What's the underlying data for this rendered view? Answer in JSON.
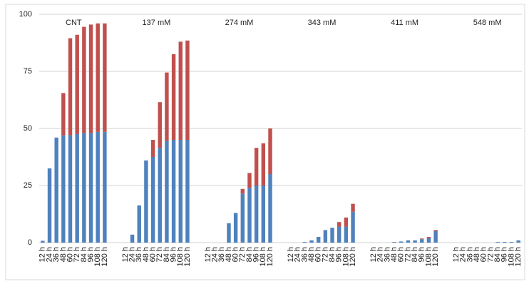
{
  "chart_data": {
    "type": "bar",
    "stacked": true,
    "colors": [
      "#4f81bd",
      "#c0504d"
    ],
    "ylim": [
      0,
      100
    ],
    "yticks": [
      0,
      25,
      50,
      75,
      100
    ],
    "grid": true,
    "groups": [
      {
        "label": "CNT",
        "categories": [
          "12 h",
          "24 h",
          "36 h",
          "48 h",
          "60 h",
          "72 h",
          "84 h",
          "96 h",
          "108 h",
          "120 h"
        ],
        "series": [
          {
            "values": [
              0.8,
              32.5,
              46,
              47,
              47,
              47.5,
              48,
              48,
              48.5,
              48.5
            ]
          },
          {
            "values": [
              0,
              0,
              0,
              18.5,
              42.5,
              43.5,
              46.5,
              47.5,
              47.5,
              47.5
            ]
          }
        ]
      },
      {
        "label": "137 mM",
        "categories": [
          "12 h",
          "24 h",
          "36 h",
          "48 h",
          "60 h",
          "72 h",
          "84 h",
          "96 h",
          "108 h",
          "120 h"
        ],
        "series": [
          {
            "values": [
              0,
              3.5,
              16.3,
              36,
              37.5,
              41.5,
              44.5,
              45,
              45,
              45
            ]
          },
          {
            "values": [
              0,
              0,
              0,
              0,
              7.5,
              20,
              30,
              37.5,
              43,
              43.5
            ]
          }
        ]
      },
      {
        "label": "274 mM",
        "categories": [
          "12 h",
          "24 h",
          "36 h",
          "48 h",
          "60 h",
          "72 h",
          "84 h",
          "96 h",
          "108 h",
          "120 h"
        ],
        "series": [
          {
            "values": [
              0,
              0,
              0,
              8.5,
              13,
              21.5,
              24,
              25,
              25,
              30
            ]
          },
          {
            "values": [
              0,
              0,
              0,
              0,
              0,
              2,
              6.5,
              16.5,
              18.5,
              20
            ]
          }
        ]
      },
      {
        "label": "343 mM",
        "categories": [
          "12 h",
          "24 h",
          "36 h",
          "48 h",
          "60 h",
          "72 h",
          "84 h",
          "96 h",
          "108 h",
          "120 h"
        ],
        "series": [
          {
            "values": [
              0,
              0,
              0.3,
              1,
              2.5,
              5.5,
              6.5,
              7,
              7,
              13.5
            ]
          },
          {
            "values": [
              0,
              0,
              0,
              0,
              0,
              0,
              0,
              2,
              4,
              3.5
            ]
          }
        ]
      },
      {
        "label": "411 mM",
        "categories": [
          "12 h",
          "24 h",
          "36 h",
          "48 h",
          "60 h",
          "72 h",
          "84 h",
          "96 h",
          "108 h",
          "120 h"
        ],
        "series": [
          {
            "values": [
              0,
              0,
              0,
              0.3,
              0.5,
              1,
              1,
              1.5,
              2,
              5
            ]
          },
          {
            "values": [
              0,
              0,
              0,
              0,
              0,
              0,
              0,
              0.3,
              0.5,
              0.5
            ]
          }
        ]
      },
      {
        "label": "548 mM",
        "categories": [
          "12 h",
          "24 h",
          "36 h",
          "48 h",
          "60 h",
          "72 h",
          "84 h",
          "96 h",
          "108 h",
          "120 h"
        ],
        "series": [
          {
            "values": [
              0,
              0,
              0,
              0,
              0,
              0,
              0.3,
              0.3,
              0.3,
              1
            ]
          },
          {
            "values": [
              0,
              0,
              0,
              0,
              0,
              0,
              0,
              0,
              0,
              0
            ]
          }
        ]
      }
    ]
  }
}
